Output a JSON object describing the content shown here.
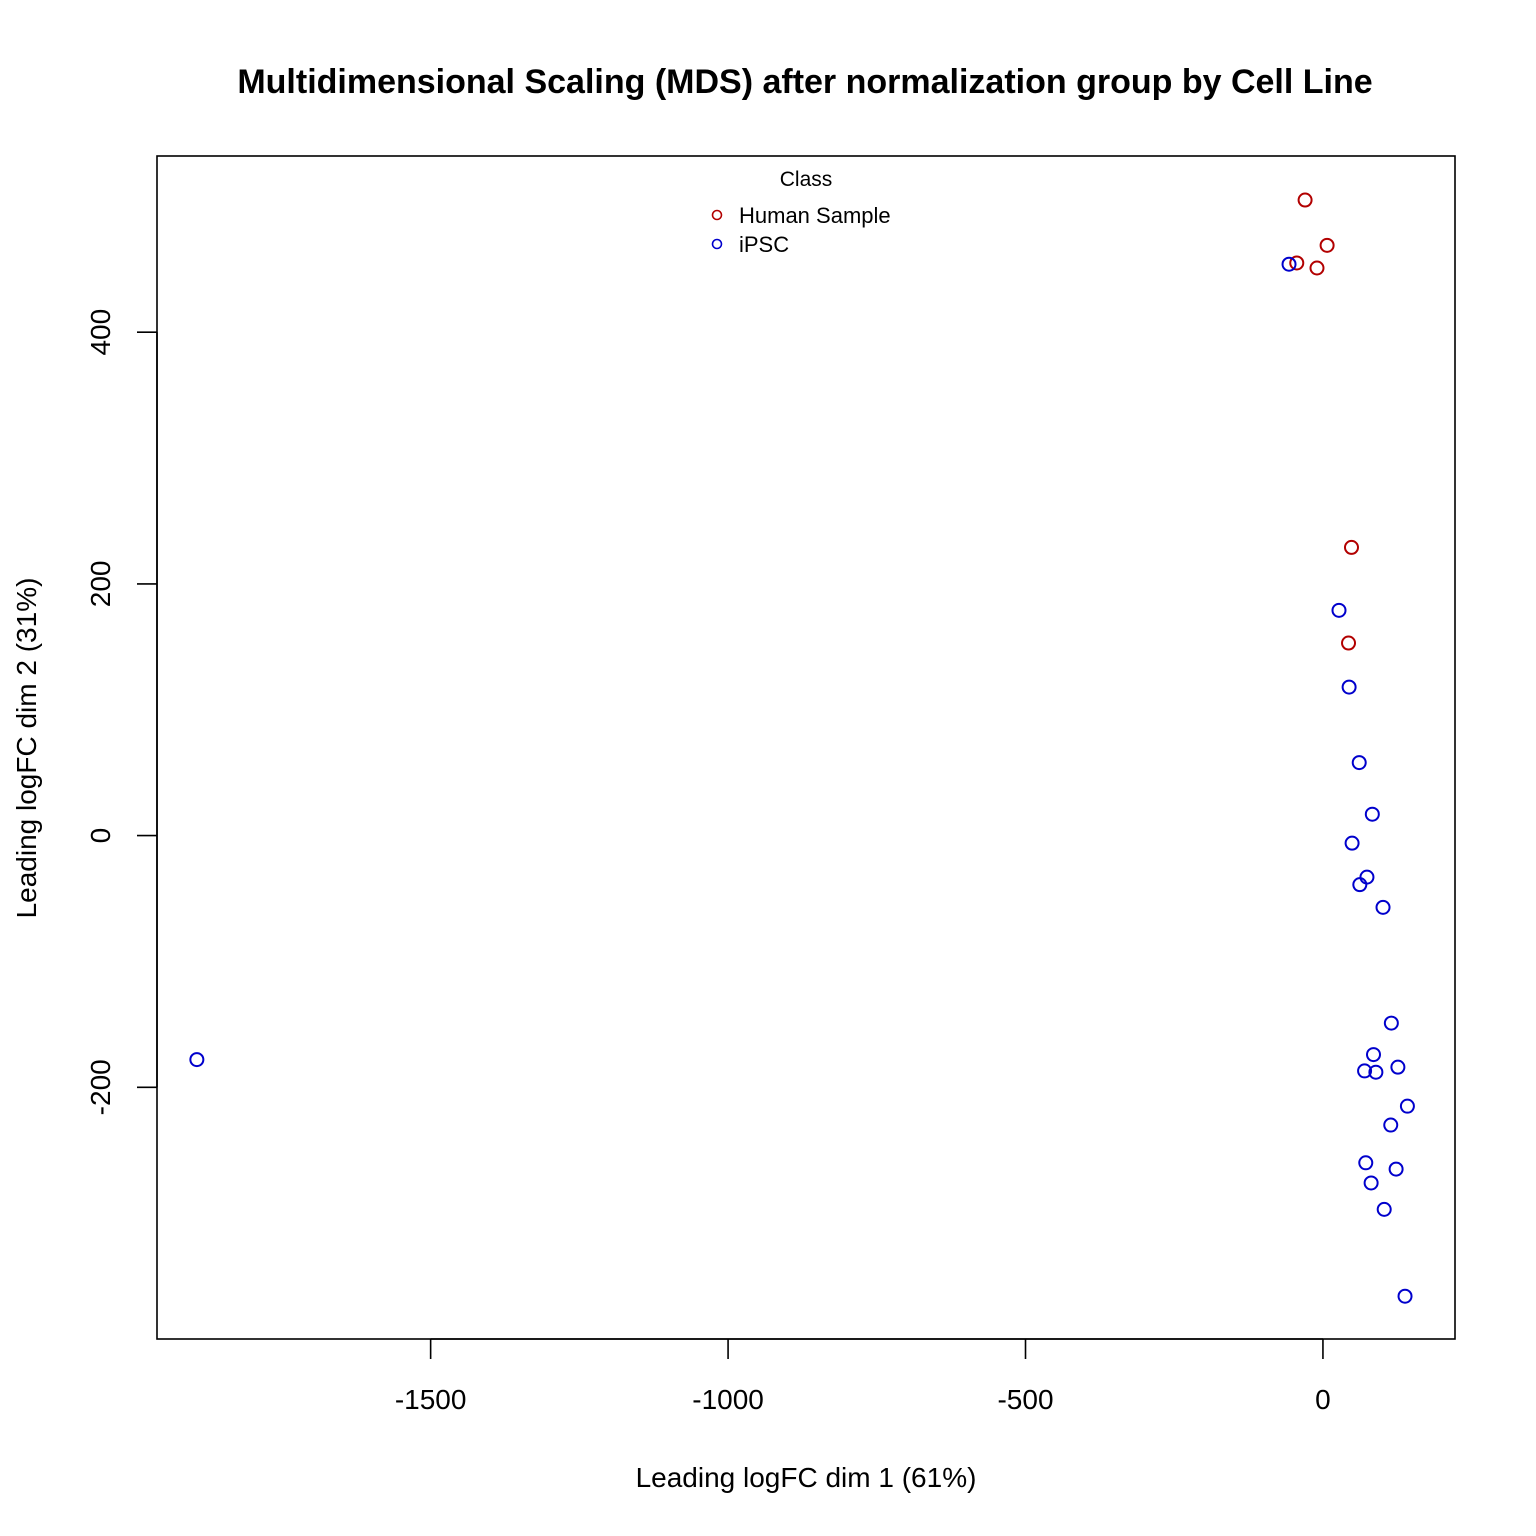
{
  "chart_data": {
    "type": "scatter",
    "title": "Multidimensional Scaling (MDS) after normalization group by Cell Line",
    "xlabel": "Leading logFC dim 1 (61%)",
    "ylabel": "Leading logFC dim 2 (31%)",
    "xlim": [
      -1960,
      222
    ],
    "ylim": [
      -400,
      540
    ],
    "x_ticks": [
      -1500,
      -1000,
      -500,
      0
    ],
    "x_tick_labels": [
      "-1500",
      "-1000",
      "-500",
      "0"
    ],
    "y_ticks": [
      -200,
      0,
      200,
      400
    ],
    "y_tick_labels": [
      "-200",
      "0",
      "200",
      "400"
    ],
    "grid": false,
    "legend": {
      "title": "Class",
      "placement": "top-center"
    },
    "series": [
      {
        "name": "Human Sample",
        "color": "#B20000",
        "marker": "open-circle",
        "points": [
          {
            "x": -30,
            "y": 505
          },
          {
            "x": 7,
            "y": 469
          },
          {
            "x": -44,
            "y": 455
          },
          {
            "x": -10,
            "y": 451
          },
          {
            "x": 48,
            "y": 229
          },
          {
            "x": 43,
            "y": 153
          }
        ]
      },
      {
        "name": "iPSC",
        "color": "#0000CC",
        "marker": "open-circle",
        "points": [
          {
            "x": -57,
            "y": 454
          },
          {
            "x": 27,
            "y": 179
          },
          {
            "x": 44,
            "y": 118
          },
          {
            "x": 61,
            "y": 58
          },
          {
            "x": 83,
            "y": 17
          },
          {
            "x": 49,
            "y": -6
          },
          {
            "x": 74,
            "y": -33
          },
          {
            "x": 62,
            "y": -39
          },
          {
            "x": 101,
            "y": -57
          },
          {
            "x": 115,
            "y": -149
          },
          {
            "x": 85,
            "y": -174
          },
          {
            "x": 126,
            "y": -184
          },
          {
            "x": 70,
            "y": -187
          },
          {
            "x": 89,
            "y": -188
          },
          {
            "x": 142,
            "y": -215
          },
          {
            "x": 114,
            "y": -230
          },
          {
            "x": 72,
            "y": -260
          },
          {
            "x": 123,
            "y": -265
          },
          {
            "x": 81,
            "y": -276
          },
          {
            "x": 103,
            "y": -297
          },
          {
            "x": 138,
            "y": -366
          },
          {
            "x": -1893,
            "y": -178
          }
        ]
      }
    ]
  }
}
